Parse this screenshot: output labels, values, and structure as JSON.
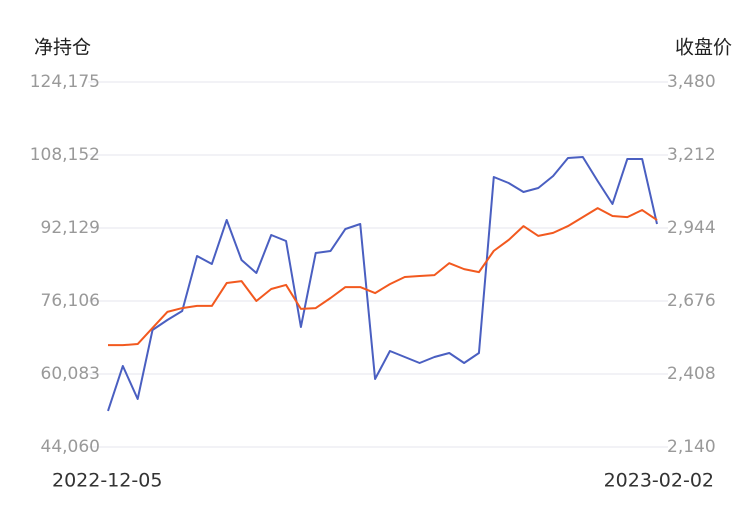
{
  "chart_data": {
    "type": "line",
    "y_title": "净持仓",
    "y2_title": "收盘价",
    "categories": [
      "2022-12-05",
      null,
      null,
      null,
      null,
      null,
      null,
      null,
      null,
      null,
      null,
      null,
      null,
      null,
      null,
      null,
      null,
      null,
      null,
      null,
      null,
      null,
      null,
      null,
      null,
      null,
      null,
      null,
      null,
      null,
      null,
      null,
      null,
      null,
      null,
      null,
      null,
      "2023-02-02"
    ],
    "series": [
      {
        "color": "#4a5fc1",
        "values": [
          51962,
          61840,
          54596,
          69742,
          71937,
          73913,
          85985,
          84229,
          93887,
          85106,
          82253,
          90594,
          89277,
          70400,
          86643,
          87082,
          91911,
          93008,
          58986,
          65132,
          63815,
          62498,
          63815,
          64693,
          62498,
          64693,
          103325,
          102008,
          100033,
          100911,
          103545,
          107496,
          107715,
          102447,
          97399,
          107276,
          107276,
          93008
        ]
      },
      {
        "color": "#f2591f",
        "axis": "y2",
        "values": [
          2514,
          2514,
          2518,
          2577,
          2636,
          2650,
          2658,
          2658,
          2742,
          2749,
          2676,
          2720,
          2735,
          2647,
          2650,
          2687,
          2727,
          2727,
          2705,
          2738,
          2764,
          2768,
          2771,
          2815,
          2793,
          2782,
          2860,
          2900,
          2951,
          2915,
          2926,
          2951,
          2984,
          3017,
          2988,
          2984,
          3010,
          2973
        ]
      }
    ],
    "ylim": [
      44060,
      124175
    ],
    "yticks": [
      {
        "value": 44060,
        "label": "44,060"
      },
      {
        "value": 60083,
        "label": "60,083"
      },
      {
        "value": 76106,
        "label": "76,106"
      },
      {
        "value": 92129,
        "label": "92,129"
      },
      {
        "value": 108152,
        "label": "108,152"
      },
      {
        "value": 124175,
        "label": "124,175"
      }
    ],
    "y2lim": [
      2140,
      3480
    ],
    "y2ticks": [
      {
        "value": 2140,
        "label": "2,140"
      },
      {
        "value": 2408,
        "label": "2,408"
      },
      {
        "value": 2676,
        "label": "2,676"
      },
      {
        "value": 2944,
        "label": "2,944"
      },
      {
        "value": 3212,
        "label": "3,212"
      },
      {
        "value": 3480,
        "label": "3,480"
      }
    ],
    "grid": true
  }
}
